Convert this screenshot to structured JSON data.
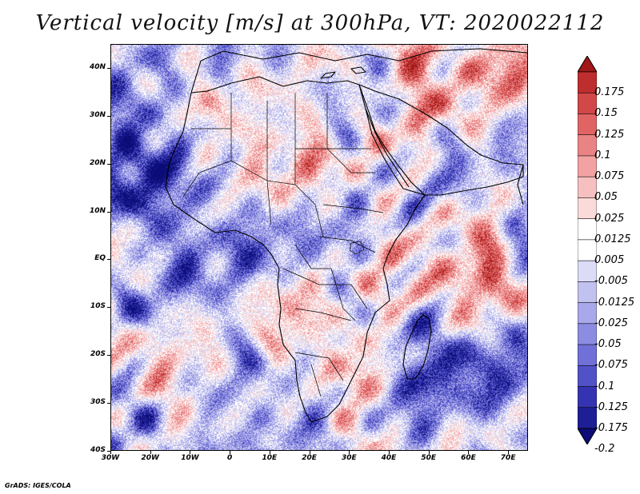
{
  "title": "Vertical velocity [m/s] at 300hPa, VT: 2020022112",
  "credit": "GrADS: IGES/COLA",
  "map": {
    "region": "Africa",
    "lat_labels": [
      "40N",
      "30N",
      "20N",
      "10N",
      "EQ",
      "10S",
      "20S",
      "30S",
      "40S"
    ],
    "lat_values": [
      40,
      30,
      20,
      10,
      0,
      -10,
      -20,
      -30,
      -40
    ],
    "lon_labels": [
      "30W",
      "20W",
      "10W",
      "0",
      "10E",
      "20E",
      "30E",
      "40E",
      "50E",
      "60E",
      "70E"
    ],
    "lon_values": [
      -30,
      -20,
      -10,
      0,
      10,
      20,
      30,
      40,
      50,
      60,
      70
    ],
    "lon_range": [
      -30,
      75
    ],
    "lat_range": [
      -40,
      45
    ]
  },
  "colorbar": {
    "labels": [
      "0.175",
      "0.15",
      "0.125",
      "0.1",
      "0.075",
      "0.05",
      "0.025",
      "0.0125",
      "0.005",
      "-0.005",
      "-0.0125",
      "-0.025",
      "-0.05",
      "-0.075",
      "-0.1",
      "-0.125",
      "-0.175",
      "-0.2"
    ],
    "colors": [
      "#a01818",
      "#be2e2e",
      "#d24848",
      "#e06464",
      "#ea8484",
      "#f2a2a2",
      "#f7c0c0",
      "#fbdada",
      "#ffffff",
      "#ffffff",
      "#dcdcf6",
      "#c2c2f0",
      "#a8a8ea",
      "#8c8ce2",
      "#7070d8",
      "#5252c8",
      "#3434b2",
      "#1e1e96",
      "#0c0c78"
    ]
  }
}
